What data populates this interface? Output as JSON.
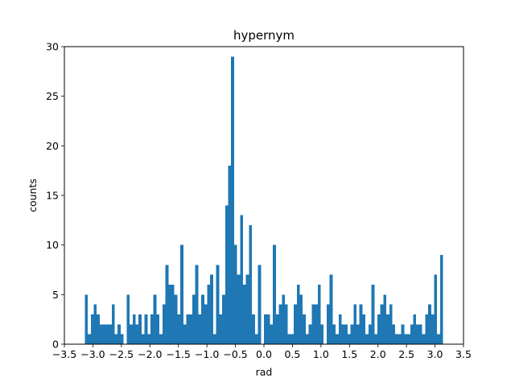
{
  "chart_data": {
    "type": "bar",
    "title": "hypernym",
    "xlabel": "rad",
    "ylabel": "counts",
    "xlim": [
      -3.5,
      3.5
    ],
    "ylim": [
      0,
      30
    ],
    "xticks": [
      -3.5,
      -3.0,
      -2.5,
      -2.0,
      -1.5,
      -1.0,
      -0.5,
      0.0,
      0.5,
      1.0,
      1.5,
      2.0,
      2.5,
      3.0,
      3.5
    ],
    "xtick_labels": [
      "−3.5",
      "−3.0",
      "−2.5",
      "−2.0",
      "−1.5",
      "−1.0",
      "−0.5",
      "0.0",
      "0.5",
      "1.0",
      "1.5",
      "2.0",
      "2.5",
      "3.0",
      "3.5"
    ],
    "yticks": [
      0,
      5,
      10,
      15,
      20,
      25,
      30
    ],
    "ytick_labels": [
      "0",
      "5",
      "10",
      "15",
      "20",
      "25",
      "30"
    ],
    "bin_range": [
      -3.1416,
      3.1416
    ],
    "bar_color": "#1f77b4",
    "values": [
      5,
      1,
      3,
      4,
      3,
      2,
      2,
      2,
      2,
      4,
      1,
      2,
      1,
      0,
      5,
      2,
      3,
      2,
      3,
      1,
      3,
      1,
      3,
      5,
      3,
      1,
      4,
      8,
      6,
      6,
      5,
      3,
      10,
      2,
      3,
      3,
      5,
      8,
      3,
      5,
      4,
      6,
      7,
      1,
      8,
      3,
      5,
      14,
      18,
      29,
      10,
      7,
      13,
      6,
      7,
      12,
      3,
      1,
      8,
      0,
      3,
      3,
      2,
      10,
      3,
      4,
      5,
      4,
      1,
      1,
      4,
      6,
      5,
      3,
      1,
      2,
      4,
      4,
      6,
      2,
      0,
      4,
      7,
      2,
      1,
      3,
      2,
      2,
      1,
      2,
      4,
      2,
      4,
      3,
      1,
      2,
      6,
      1,
      3,
      4,
      5,
      3,
      4,
      2,
      1,
      1,
      2,
      1,
      1,
      2,
      3,
      2,
      2,
      1,
      3,
      4,
      3,
      7,
      1,
      9
    ]
  }
}
